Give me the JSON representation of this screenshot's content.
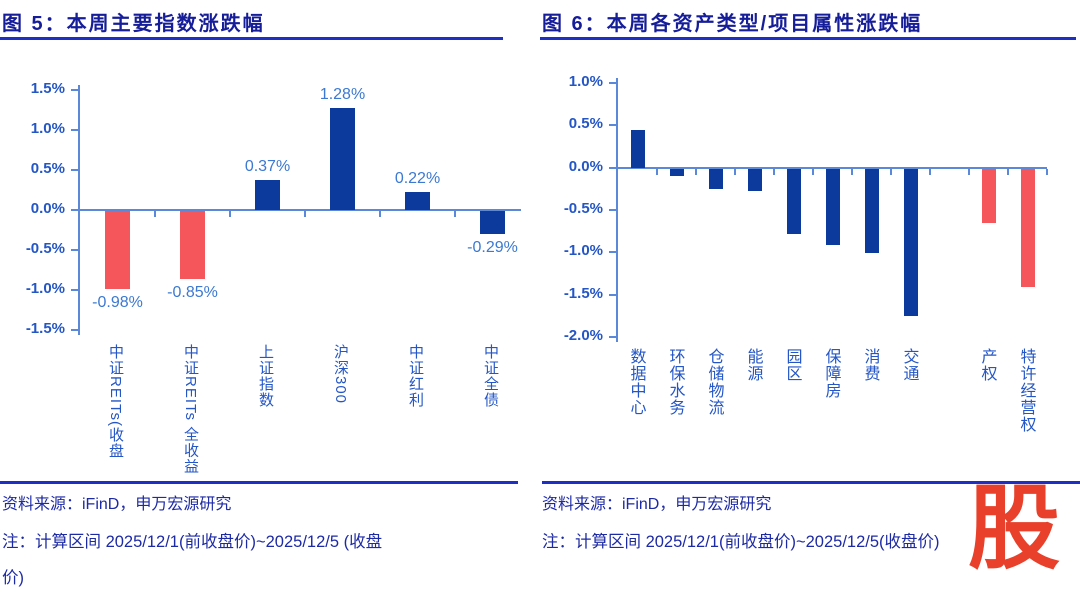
{
  "colors": {
    "title_blue": "#161d99",
    "rule_blue": "#1e2fc4",
    "text_blue": "#1d2aa5",
    "axis": "#5b88d9",
    "tick_label_blue": "#2456c6",
    "data_label_blue": "#3b79d2",
    "blue": "#0c3a9c",
    "red": "#f4565c",
    "watermark_red": "#e8402a"
  },
  "figure5": {
    "title": "图 5：本周主要指数涨跌幅",
    "source": "资料来源：iFinD，申万宏源研究",
    "note": "注：计算区间 2025/12/1(前收盘价)~2025/12/5 (收盘\n价)"
  },
  "figure6": {
    "title": "图 6：本周各资产类型/项目属性涨跌幅",
    "source": "资料来源：iFinD，申万宏源研究",
    "note": "注：计算区间 2025/12/1(前收盘价)~2025/12/5(收盘价)"
  },
  "watermark": {
    "text": "股"
  },
  "chart_data": [
    {
      "figure": "图 5",
      "type": "bar",
      "title": "本周主要指数涨跌幅",
      "categories": [
        "中证REITs(收盘",
        "中证REITs 全收益",
        "上证指数",
        "沪深300",
        "中证红利",
        "中证全债"
      ],
      "values": [
        -0.98,
        -0.85,
        0.37,
        1.28,
        0.22,
        -0.29
      ],
      "data_labels": [
        "-0.98%",
        "-0.85%",
        "0.37%",
        "1.28%",
        "0.22%",
        "-0.29%"
      ],
      "bar_colors": [
        "red",
        "red",
        "blue",
        "blue",
        "blue",
        "blue"
      ],
      "show_data_labels": true,
      "yticks": [
        "1.5%",
        "1.0%",
        "0.5%",
        "0.0%",
        "-0.5%",
        "-1.0%",
        "-1.5%"
      ],
      "ylim": [
        -1.5,
        1.5
      ],
      "unit": "%",
      "xlabel": "",
      "ylabel": "",
      "grid": false,
      "legend": null
    },
    {
      "figure": "图 6",
      "type": "bar",
      "title": "本周各资产类型/项目属性涨跌幅",
      "categories": [
        "数据中心",
        "环保水务",
        "仓储物流",
        "能源",
        "园区",
        "保障房",
        "消费",
        "交通",
        "",
        "产权",
        "特许经营权"
      ],
      "values": [
        0.44,
        -0.09,
        -0.24,
        -0.26,
        -0.77,
        -0.9,
        -1.0,
        -1.74,
        null,
        -0.64,
        -1.4
      ],
      "data_labels": null,
      "bar_colors": [
        "blue",
        "blue",
        "blue",
        "blue",
        "blue",
        "blue",
        "blue",
        "blue",
        null,
        "red",
        "red"
      ],
      "show_data_labels": false,
      "yticks": [
        "1.0%",
        "0.5%",
        "0.0%",
        "-0.5%",
        "-1.0%",
        "-1.5%",
        "-2.0%"
      ],
      "ylim": [
        -2.0,
        1.0
      ],
      "unit": "%",
      "xlabel": "",
      "ylabel": "",
      "grid": false,
      "legend": null
    }
  ]
}
